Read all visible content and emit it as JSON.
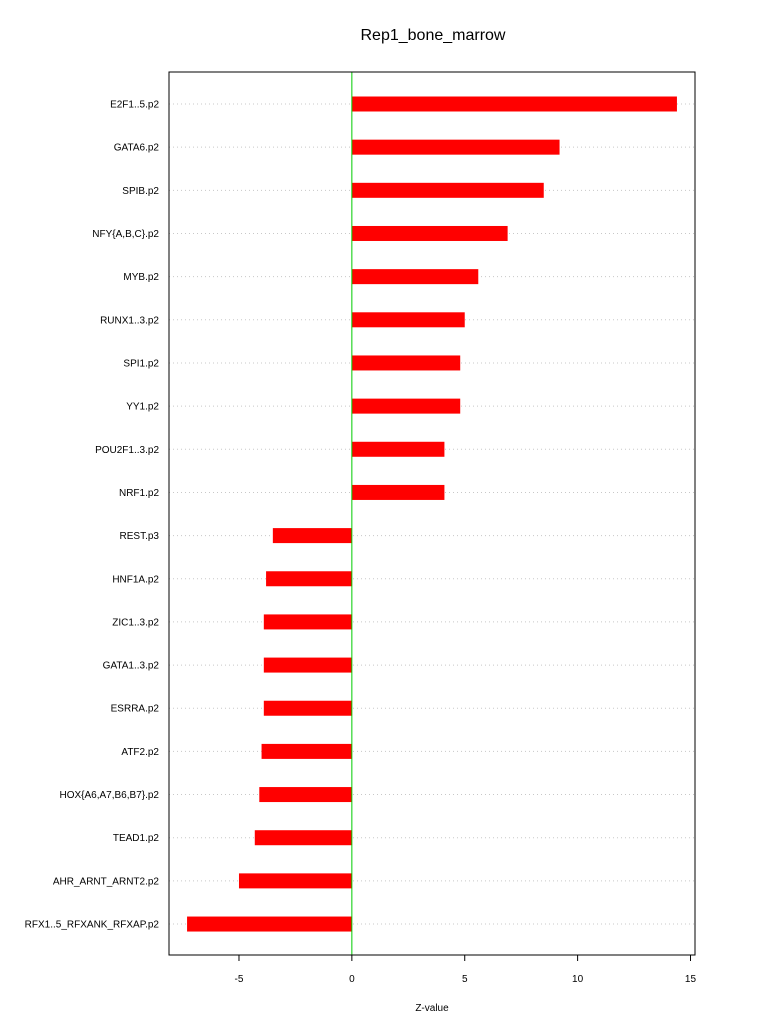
{
  "chart_data": {
    "type": "bar",
    "orientation": "horizontal",
    "title": "Rep1_bone_marrow",
    "xlabel": "Z-value",
    "ylabel": "",
    "xlim": [
      -8.1,
      15.2
    ],
    "xticks": [
      -5,
      0,
      5,
      10,
      15
    ],
    "zero_line_color": "#00cc00",
    "bar_color": "#ff0000",
    "grid": "dotted horizontal",
    "categories": [
      "E2F1..5.p2",
      "GATA6.p2",
      "SPIB.p2",
      "NFY{A,B,C}.p2",
      "MYB.p2",
      "RUNX1..3.p2",
      "SPI1.p2",
      "YY1.p2",
      "POU2F1..3.p2",
      "NRF1.p2",
      "REST.p3",
      "HNF1A.p2",
      "ZIC1..3.p2",
      "GATA1..3.p2",
      "ESRRA.p2",
      "ATF2.p2",
      "HOX{A6,A7,B6,B7}.p2",
      "TEAD1.p2",
      "AHR_ARNT_ARNT2.p2",
      "RFX1..5_RFXANK_RFXAP.p2"
    ],
    "values": [
      14.4,
      9.2,
      8.5,
      6.9,
      5.6,
      5.0,
      4.8,
      4.8,
      4.1,
      4.1,
      -3.5,
      -3.8,
      -3.9,
      -3.9,
      -3.9,
      -4.0,
      -4.1,
      -4.3,
      -5.0,
      -7.3
    ]
  }
}
